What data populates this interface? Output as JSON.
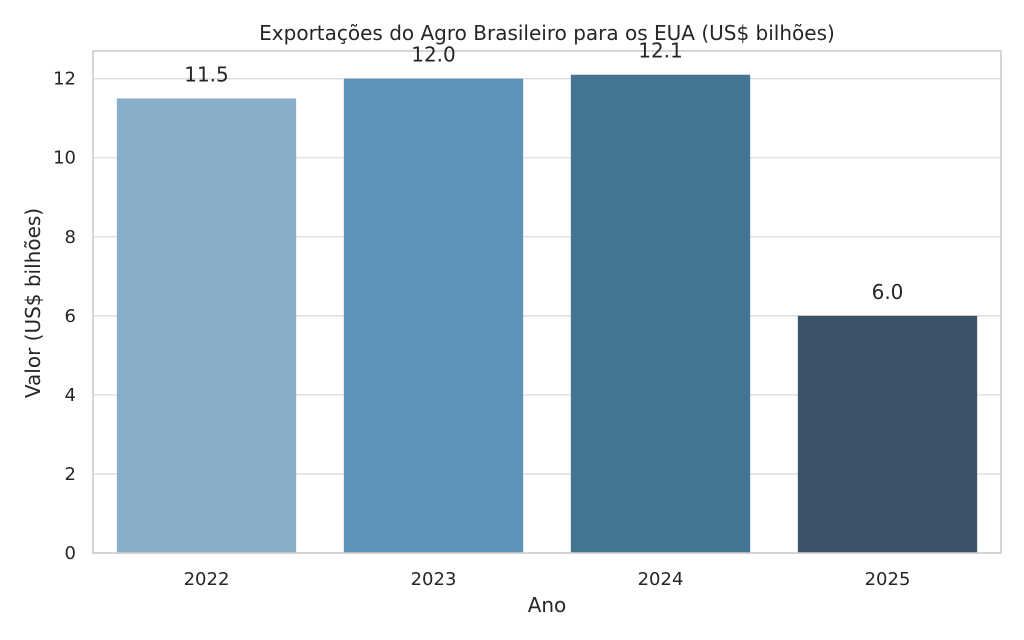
{
  "chart_data": {
    "type": "bar",
    "title": "Exportações do Agro Brasileiro para os EUA (US$ bilhões)",
    "xlabel": "Ano",
    "ylabel": "Valor (US$ bilhões)",
    "categories": [
      "2022",
      "2023",
      "2024",
      "2025"
    ],
    "values": [
      11.5,
      12.0,
      12.1,
      6.0
    ],
    "value_labels": [
      "11.5",
      "12.0",
      "12.1",
      "6.0"
    ],
    "ylim": [
      0,
      12.7
    ],
    "yticks": [
      0,
      2,
      4,
      6,
      8,
      10,
      12
    ],
    "ytick_labels": [
      "0",
      "2",
      "4",
      "6",
      "8",
      "10",
      "12"
    ],
    "grid": true,
    "colors": [
      "#88afc9",
      "#5d93b9",
      "#457595",
      "#3d5368"
    ]
  }
}
